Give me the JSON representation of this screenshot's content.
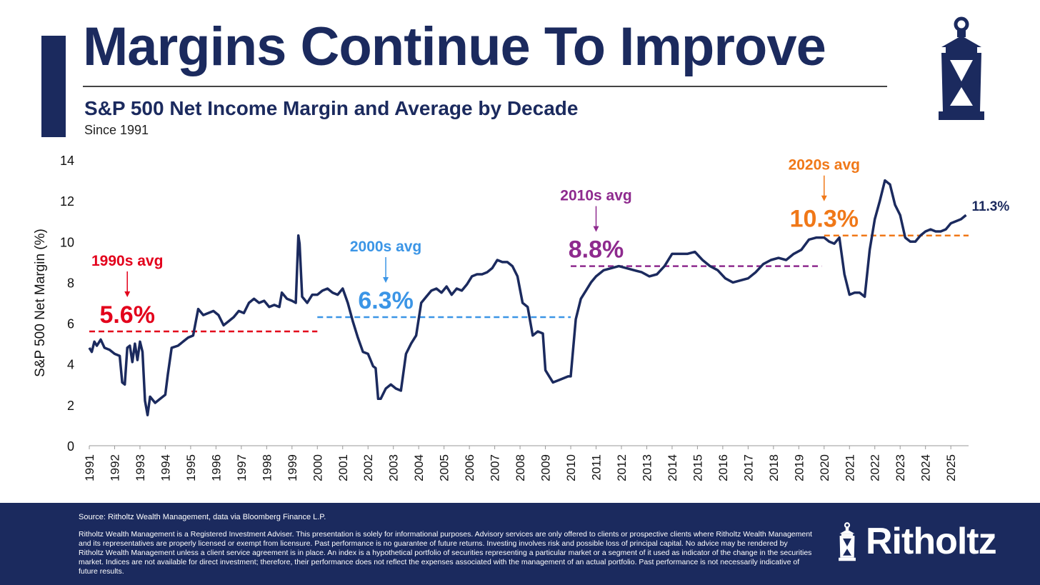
{
  "header": {
    "title": "Margins Continue To Improve",
    "subtitle": "S&P 500 Net Income Margin and Average by Decade",
    "since": "Since 1991"
  },
  "colors": {
    "navy": "#1b2a5e",
    "red": "#e3001b",
    "blue": "#3b95e6",
    "purple": "#8e2a8e",
    "orange": "#f07818"
  },
  "icons": {
    "logo": "lantern-icon"
  },
  "footer": {
    "source": "Source: Ritholtz Wealth Management, data via Bloomberg Finance L.P.",
    "disclaimer": "Ritholtz Wealth Management is a Registered Investment Adviser. This presentation is solely for informational purposes. Advisory services are only offered to clients or prospective clients where Ritholtz Wealth Management and its representatives are properly licensed or exempt from licensure. Past performance is no guarantee of future returns. Investing involves risk and possible loss of principal capital. No advice may be rendered by Ritholtz Wealth Management unless a client service agreement is in place. An index is a hypothetical portfolio of securities representing a particular market or a segment of it used as indicator of the change in the securities market. Indices are not available for direct investment; therefore, their performance does not reflect the expenses associated with the management of an actual portfolio. Past performance is not necessarily indicative of future results.",
    "brand": "Ritholtz"
  },
  "chart_data": {
    "type": "line",
    "title": "S&P 500 Net Income Margin and Average by Decade",
    "ylabel": "S&P 500 Net Margin (%)",
    "xlabel": "",
    "ylim": [
      0,
      14
    ],
    "xlim": [
      1991,
      2025.7
    ],
    "yticks": [
      0,
      2,
      4,
      6,
      8,
      10,
      12,
      14
    ],
    "xticks": [
      "1991",
      "1992",
      "1993",
      "1994",
      "1995",
      "1996",
      "1997",
      "1998",
      "1999",
      "2000",
      "2001",
      "2002",
      "2003",
      "2004",
      "2005",
      "2006",
      "2007",
      "2008",
      "2009",
      "2010",
      "2011",
      "2012",
      "2013",
      "2014",
      "2015",
      "2016",
      "2017",
      "2018",
      "2019",
      "2020",
      "2021",
      "2022",
      "2023",
      "2024",
      "2025"
    ],
    "series": [
      {
        "name": "S&P 500 Net Margin",
        "x": [
          1991.0,
          1991.1,
          1991.2,
          1991.3,
          1991.45,
          1991.6,
          1991.8,
          1992.0,
          1992.2,
          1992.3,
          1992.4,
          1992.5,
          1992.6,
          1992.7,
          1992.8,
          1992.9,
          1993.0,
          1993.1,
          1993.2,
          1993.3,
          1993.4,
          1993.6,
          1993.8,
          1994.0,
          1994.1,
          1994.25,
          1994.5,
          1994.7,
          1994.9,
          1995.1,
          1995.3,
          1995.5,
          1995.7,
          1995.9,
          1996.1,
          1996.3,
          1996.5,
          1996.7,
          1996.9,
          1997.1,
          1997.3,
          1997.5,
          1997.7,
          1997.9,
          1998.1,
          1998.3,
          1998.5,
          1998.6,
          1998.8,
          1999.0,
          1999.15,
          1999.25,
          1999.3,
          1999.4,
          1999.6,
          1999.8,
          2000.0,
          2000.2,
          2000.4,
          2000.6,
          2000.8,
          2001.0,
          2001.2,
          2001.4,
          2001.6,
          2001.8,
          2002.0,
          2002.1,
          2002.2,
          2002.3,
          2002.4,
          2002.5,
          2002.7,
          2002.9,
          2003.1,
          2003.3,
          2003.5,
          2003.7,
          2003.9,
          2004.1,
          2004.3,
          2004.5,
          2004.7,
          2004.9,
          2005.1,
          2005.3,
          2005.5,
          2005.7,
          2005.9,
          2006.1,
          2006.3,
          2006.5,
          2006.7,
          2006.9,
          2007.1,
          2007.3,
          2007.5,
          2007.7,
          2007.9,
          2008.1,
          2008.3,
          2008.5,
          2008.7,
          2008.9,
          2009.0,
          2009.15,
          2009.3,
          2009.5,
          2009.7,
          2009.9,
          2010.0,
          2010.2,
          2010.4,
          2010.6,
          2010.8,
          2011.0,
          2011.3,
          2011.6,
          2011.9,
          2012.2,
          2012.5,
          2012.8,
          2013.1,
          2013.4,
          2013.7,
          2014.0,
          2014.3,
          2014.6,
          2014.9,
          2015.2,
          2015.5,
          2015.8,
          2016.1,
          2016.4,
          2016.7,
          2017.0,
          2017.3,
          2017.6,
          2017.9,
          2018.2,
          2018.5,
          2018.8,
          2019.1,
          2019.4,
          2019.7,
          2020.0,
          2020.2,
          2020.4,
          2020.6,
          2020.8,
          2021.0,
          2021.2,
          2021.4,
          2021.6,
          2021.8,
          2022.0,
          2022.2,
          2022.4,
          2022.6,
          2022.8,
          2023.0,
          2023.2,
          2023.4,
          2023.6,
          2023.8,
          2024.0,
          2024.2,
          2024.4,
          2024.6,
          2024.8,
          2025.0,
          2025.2,
          2025.4,
          2025.6
        ],
        "values": [
          4.8,
          4.6,
          5.1,
          4.9,
          5.2,
          4.8,
          4.7,
          4.5,
          4.4,
          3.1,
          3.0,
          4.8,
          4.9,
          4.1,
          5.0,
          4.2,
          5.1,
          4.6,
          2.2,
          1.5,
          2.4,
          2.1,
          2.3,
          2.5,
          3.5,
          4.8,
          4.9,
          5.1,
          5.3,
          5.4,
          6.7,
          6.4,
          6.5,
          6.6,
          6.4,
          5.9,
          6.1,
          6.3,
          6.6,
          6.5,
          7.0,
          7.2,
          7.0,
          7.1,
          6.8,
          6.9,
          6.8,
          7.5,
          7.2,
          7.1,
          7.0,
          10.3,
          9.9,
          7.3,
          7.0,
          7.4,
          7.4,
          7.6,
          7.7,
          7.5,
          7.4,
          7.7,
          7.0,
          6.1,
          5.3,
          4.6,
          4.5,
          4.2,
          3.9,
          3.8,
          2.3,
          2.3,
          2.8,
          3.0,
          2.8,
          2.7,
          4.5,
          5.0,
          5.4,
          7.0,
          7.3,
          7.6,
          7.7,
          7.5,
          7.8,
          7.4,
          7.7,
          7.6,
          7.9,
          8.3,
          8.4,
          8.4,
          8.5,
          8.7,
          9.1,
          9.0,
          9.0,
          8.8,
          8.3,
          7.0,
          6.8,
          5.4,
          5.6,
          5.5,
          3.7,
          3.4,
          3.1,
          3.2,
          3.3,
          3.4,
          3.4,
          6.2,
          7.2,
          7.6,
          8.0,
          8.3,
          8.6,
          8.7,
          8.8,
          8.7,
          8.6,
          8.5,
          8.3,
          8.4,
          8.8,
          9.4,
          9.4,
          9.4,
          9.5,
          9.1,
          8.8,
          8.6,
          8.2,
          8.0,
          8.1,
          8.2,
          8.5,
          8.9,
          9.1,
          9.2,
          9.1,
          9.4,
          9.6,
          10.1,
          10.2,
          10.2,
          10.0,
          9.9,
          10.2,
          8.4,
          7.4,
          7.5,
          7.5,
          7.3,
          9.6,
          11.1,
          12.0,
          13.0,
          12.8,
          11.8,
          11.3,
          10.2,
          10.0,
          10.0,
          10.3,
          10.5,
          10.6,
          10.5,
          10.5,
          10.6,
          10.9,
          11.0,
          11.1,
          11.3
        ]
      }
    ],
    "decade_averages": [
      {
        "label": "1990s avg",
        "value": 5.6,
        "display": "5.6%",
        "start": 1991.0,
        "end": 2000.0,
        "color": "#e3001b"
      },
      {
        "label": "2000s avg",
        "value": 6.3,
        "display": "6.3%",
        "start": 2000.0,
        "end": 2010.0,
        "color": "#3b95e6"
      },
      {
        "label": "2010s avg",
        "value": 8.8,
        "display": "8.8%",
        "start": 2010.0,
        "end": 2019.9,
        "color": "#8e2a8e"
      },
      {
        "label": "2020s avg",
        "value": 10.3,
        "display": "10.3%",
        "start": 2020.0,
        "end": 2025.7,
        "color": "#f07818"
      }
    ],
    "latest_label": "11.3%"
  }
}
